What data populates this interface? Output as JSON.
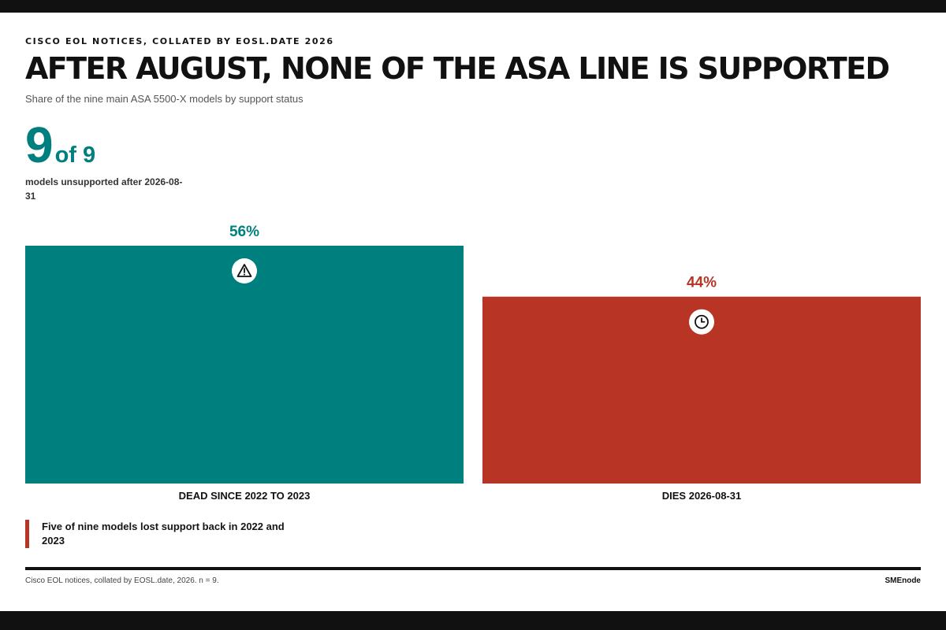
{
  "header": {
    "kicker": "CISCO EOL NOTICES, COLLATED BY EOSL.DATE 2026",
    "title": "AFTER AUGUST, NONE OF THE ASA LINE IS SUPPORTED",
    "subtitle": "Share of the nine main ASA 5500-X models by support status"
  },
  "stat": {
    "value": "9",
    "of_text": "of 9",
    "description": "models unsupported after 2026-08-31"
  },
  "chart_data": {
    "type": "bar",
    "categories": [
      "DEAD SINCE 2022 TO 2023",
      "DIES 2026-08-31"
    ],
    "values": [
      56,
      44
    ],
    "value_labels": [
      "56%",
      "44%"
    ],
    "unit": "%",
    "ylim": [
      0,
      56
    ],
    "colors": [
      "#007f7f",
      "#b83525"
    ],
    "icons": [
      "warning-icon",
      "clock-icon"
    ],
    "grid": false,
    "legend": "none"
  },
  "note": {
    "text": "Five of nine models lost support back in 2022 and 2023"
  },
  "footer": {
    "source": "Cisco EOL notices, collated by EOSL.date, 2026. n = 9.",
    "brand": "SMEnode"
  }
}
